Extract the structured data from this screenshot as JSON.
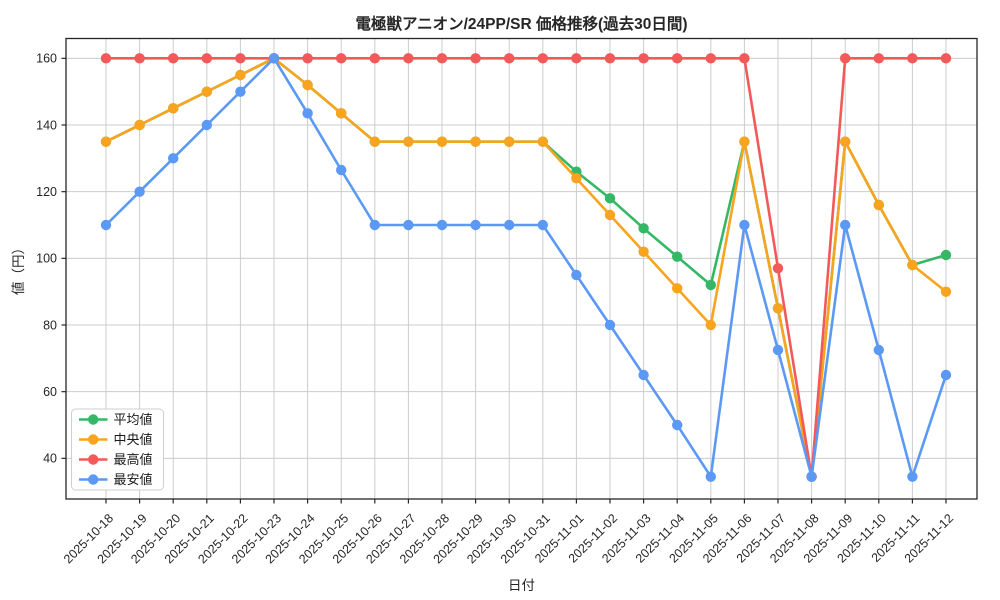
{
  "page": {
    "background": "#ffffff"
  },
  "chart_data": {
    "type": "line",
    "title": "電極獣アニオン/24PP/SR 価格推移(過去30日間)",
    "xlabel": "日付",
    "ylabel": "値（円）",
    "categories": [
      "2025-10-18",
      "2025-10-19",
      "2025-10-20",
      "2025-10-21",
      "2025-10-22",
      "2025-10-23",
      "2025-10-24",
      "2025-10-25",
      "2025-10-26",
      "2025-10-27",
      "2025-10-28",
      "2025-10-29",
      "2025-10-30",
      "2025-10-31",
      "2025-11-01",
      "2025-11-02",
      "2025-11-03",
      "2025-11-04",
      "2025-11-05",
      "2025-11-06",
      "2025-11-07",
      "2025-11-08",
      "2025-11-09",
      "2025-11-10",
      "2025-11-11",
      "2025-11-12"
    ],
    "series": [
      {
        "key": "average",
        "name": "平均値",
        "color": "#35b866",
        "values": [
          135,
          140,
          145,
          150,
          155,
          160,
          152,
          143.5,
          135,
          135,
          135,
          135,
          135,
          135,
          126,
          118,
          109,
          100.5,
          92,
          135,
          85,
          34.5,
          135,
          116,
          98,
          101
        ]
      },
      {
        "key": "median",
        "name": "中央値",
        "color": "#f8a41f",
        "values": [
          135,
          140,
          145,
          150,
          155,
          160,
          152,
          143.5,
          135,
          135,
          135,
          135,
          135,
          135,
          124,
          113,
          102,
          91,
          80,
          135,
          85,
          34.5,
          135,
          116,
          98,
          90
        ]
      },
      {
        "key": "max",
        "name": "最高値",
        "color": "#f25a5a",
        "values": [
          160,
          160,
          160,
          160,
          160,
          160,
          160,
          160,
          160,
          160,
          160,
          160,
          160,
          160,
          160,
          160,
          160,
          160,
          160,
          160,
          97,
          34.5,
          160,
          160,
          160,
          160
        ]
      },
      {
        "key": "min",
        "name": "最安値",
        "color": "#5b99f5",
        "values": [
          110,
          120,
          130,
          140,
          150,
          160,
          143.5,
          126.5,
          110,
          110,
          110,
          110,
          110,
          110,
          95,
          80,
          65,
          50,
          34.5,
          110,
          72.5,
          34.5,
          110,
          72.5,
          34.5,
          65
        ]
      }
    ],
    "yticks": [
      40,
      60,
      80,
      100,
      120,
      140,
      160
    ],
    "ylim": [
      28,
      166
    ],
    "grid": true,
    "legend_position": "lower left",
    "marker": "circle"
  }
}
